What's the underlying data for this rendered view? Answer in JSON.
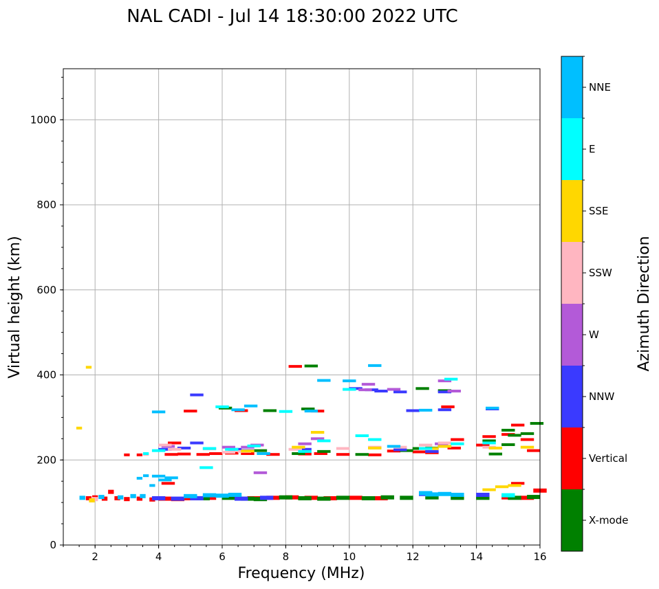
{
  "chart_data": {
    "type": "scatter",
    "title": "NAL CADI - Jul 14 18:30:00 2022 UTC",
    "xlabel": "Frequency (MHz)",
    "ylabel": "Virtual height (km)",
    "xlim": [
      1,
      16
    ],
    "ylim": [
      0,
      1120
    ],
    "xticks": [
      "2",
      "4",
      "6",
      "8",
      "10",
      "12",
      "14",
      "16"
    ],
    "yticks": [
      "0",
      "200",
      "400",
      "600",
      "800",
      "1000"
    ],
    "grid": true,
    "colorbar": {
      "label": "Azimuth Direction",
      "entries": [
        {
          "name": "X-mode",
          "color": "#008000"
        },
        {
          "name": "Vertical",
          "color": "#ff0000"
        },
        {
          "name": "NNW",
          "color": "#3a3aff"
        },
        {
          "name": "W",
          "color": "#b35ad8"
        },
        {
          "name": "SSW",
          "color": "#ffb6c1"
        },
        {
          "name": "SSE",
          "color": "#ffd700"
        },
        {
          "name": "E",
          "color": "#00ffff"
        },
        {
          "name": "NNE",
          "color": "#00bfff"
        }
      ]
    },
    "series": [
      {
        "name": "Vertical",
        "points": [
          [
            1.8,
            110
          ],
          [
            2.0,
            112
          ],
          [
            2.3,
            109
          ],
          [
            2.7,
            110
          ],
          [
            3.0,
            108
          ],
          [
            3.4,
            109
          ],
          [
            3.8,
            107
          ],
          [
            4.2,
            109
          ],
          [
            4.6,
            108
          ],
          [
            5.0,
            110
          ],
          [
            5.6,
            111
          ],
          [
            6.4,
            112
          ],
          [
            7.0,
            110
          ],
          [
            7.6,
            111
          ],
          [
            8.2,
            112
          ],
          [
            8.8,
            111
          ],
          [
            9.4,
            110
          ],
          [
            10.2,
            111
          ],
          [
            11.0,
            110
          ],
          [
            15.0,
            112
          ],
          [
            15.6,
            111
          ],
          [
            16.0,
            128
          ],
          [
            3.0,
            212
          ],
          [
            3.4,
            212
          ],
          [
            4.4,
            213
          ],
          [
            4.8,
            214
          ],
          [
            5.4,
            213
          ],
          [
            5.8,
            215
          ],
          [
            6.3,
            216
          ],
          [
            6.8,
            215
          ],
          [
            7.6,
            213
          ],
          [
            8.6,
            214
          ],
          [
            9.1,
            215
          ],
          [
            9.8,
            213
          ],
          [
            10.8,
            212
          ],
          [
            11.4,
            221
          ],
          [
            12.2,
            219
          ],
          [
            12.6,
            217
          ],
          [
            13.3,
            228
          ],
          [
            13.4,
            248
          ],
          [
            14.2,
            235
          ],
          [
            14.4,
            255
          ],
          [
            15.0,
            260
          ],
          [
            15.3,
            282
          ],
          [
            15.6,
            248
          ],
          [
            15.8,
            222
          ],
          [
            4.5,
            240
          ],
          [
            5.0,
            315
          ],
          [
            6.6,
            316
          ],
          [
            8.3,
            420
          ],
          [
            9.0,
            315
          ],
          [
            13.1,
            325
          ],
          [
            15.3,
            145
          ],
          [
            4.3,
            145
          ],
          [
            2.5,
            125
          ]
        ]
      },
      {
        "name": "X-mode",
        "points": [
          [
            5.4,
            110
          ],
          [
            6.2,
            111
          ],
          [
            6.8,
            109
          ],
          [
            7.2,
            108
          ],
          [
            8.0,
            112
          ],
          [
            8.6,
            110
          ],
          [
            9.2,
            109
          ],
          [
            9.8,
            111
          ],
          [
            10.6,
            110
          ],
          [
            11.2,
            112
          ],
          [
            11.8,
            111
          ],
          [
            12.6,
            112
          ],
          [
            13.4,
            111
          ],
          [
            14.2,
            111
          ],
          [
            15.2,
            111
          ],
          [
            15.8,
            113
          ],
          [
            7.2,
            222
          ],
          [
            8.4,
            215
          ],
          [
            9.2,
            220
          ],
          [
            10.4,
            213
          ],
          [
            11.8,
            222
          ],
          [
            12.2,
            227
          ],
          [
            12.6,
            228
          ],
          [
            13.0,
            232
          ],
          [
            14.6,
            214
          ],
          [
            15.0,
            236
          ],
          [
            15.2,
            258
          ],
          [
            15.6,
            262
          ],
          [
            15.9,
            286
          ],
          [
            14.4,
            245
          ],
          [
            15.0,
            270
          ],
          [
            6.1,
            322
          ],
          [
            7.5,
            316
          ],
          [
            8.7,
            320
          ],
          [
            8.8,
            421
          ],
          [
            12.3,
            368
          ],
          [
            13.0,
            363
          ]
        ]
      },
      {
        "name": "NNW",
        "points": [
          [
            4.0,
            110
          ],
          [
            4.6,
            109
          ],
          [
            5.2,
            110
          ],
          [
            6.6,
            109
          ],
          [
            7.4,
            111
          ],
          [
            4.2,
            225
          ],
          [
            4.8,
            228
          ],
          [
            6.4,
            225
          ],
          [
            6.8,
            222
          ],
          [
            8.6,
            225
          ],
          [
            11.6,
            224
          ],
          [
            12.6,
            220
          ],
          [
            14.2,
            118
          ],
          [
            12.0,
            316
          ],
          [
            13.0,
            318
          ],
          [
            5.2,
            353
          ],
          [
            5.2,
            240
          ],
          [
            10.2,
            368
          ],
          [
            10.7,
            365
          ],
          [
            11.0,
            362
          ],
          [
            11.6,
            360
          ],
          [
            12.4,
            120
          ],
          [
            13.0,
            360
          ],
          [
            14.5,
            320
          ]
        ]
      },
      {
        "name": "W",
        "points": [
          [
            6.2,
            230
          ],
          [
            7.1,
            235
          ],
          [
            8.6,
            238
          ],
          [
            10.5,
            365
          ],
          [
            10.6,
            378
          ],
          [
            11.4,
            366
          ],
          [
            12.9,
            238
          ],
          [
            13.0,
            386
          ],
          [
            13.3,
            362
          ],
          [
            9.0,
            250
          ],
          [
            7.2,
            170
          ],
          [
            4.3,
            232
          ],
          [
            6.8,
            230
          ]
        ]
      },
      {
        "name": "SSW",
        "points": [
          [
            4.5,
            225
          ],
          [
            5.6,
            226
          ],
          [
            6.2,
            218
          ],
          [
            6.7,
            220
          ],
          [
            8.3,
            225
          ],
          [
            9.8,
            227
          ],
          [
            10.8,
            230
          ],
          [
            11.6,
            230
          ],
          [
            12.4,
            235
          ],
          [
            13.0,
            240
          ],
          [
            14.4,
            230
          ],
          [
            4.2,
            235
          ],
          [
            3.6,
            213
          ],
          [
            2.0,
            108
          ]
        ]
      },
      {
        "name": "SSE",
        "points": [
          [
            6.8,
            221
          ],
          [
            8.4,
            230
          ],
          [
            9.0,
            265
          ],
          [
            10.8,
            228
          ],
          [
            12.6,
            227
          ],
          [
            13.0,
            232
          ],
          [
            14.4,
            130
          ],
          [
            14.8,
            137
          ],
          [
            14.6,
            228
          ],
          [
            15.2,
            140
          ],
          [
            1.8,
            418
          ],
          [
            1.5,
            275
          ],
          [
            1.9,
            105
          ],
          [
            15.6,
            230
          ]
        ]
      },
      {
        "name": "E",
        "points": [
          [
            3.6,
            215
          ],
          [
            4.0,
            222
          ],
          [
            5.6,
            227
          ],
          [
            6.3,
            225
          ],
          [
            7.0,
            233
          ],
          [
            8.6,
            220
          ],
          [
            9.2,
            245
          ],
          [
            10.4,
            257
          ],
          [
            10.8,
            248
          ],
          [
            12.4,
            227
          ],
          [
            13.4,
            238
          ],
          [
            14.4,
            240
          ],
          [
            15.0,
            117
          ],
          [
            5.5,
            182
          ],
          [
            6.0,
            325
          ],
          [
            8.0,
            314
          ],
          [
            10.0,
            366
          ],
          [
            13.2,
            390
          ]
        ]
      },
      {
        "name": "NNE",
        "points": [
          [
            1.6,
            111
          ],
          [
            2.2,
            113
          ],
          [
            2.8,
            112
          ],
          [
            3.2,
            115
          ],
          [
            3.5,
            115
          ],
          [
            4.0,
            162
          ],
          [
            4.2,
            153
          ],
          [
            3.4,
            157
          ],
          [
            3.6,
            163
          ],
          [
            4.4,
            158
          ],
          [
            5.0,
            115
          ],
          [
            5.6,
            117
          ],
          [
            6.0,
            116
          ],
          [
            6.4,
            118
          ],
          [
            4.0,
            313
          ],
          [
            6.5,
            318
          ],
          [
            6.9,
            327
          ],
          [
            8.8,
            315
          ],
          [
            9.2,
            387
          ],
          [
            10.0,
            386
          ],
          [
            10.8,
            422
          ],
          [
            11.4,
            232
          ],
          [
            12.4,
            122
          ],
          [
            12.6,
            119
          ],
          [
            12.4,
            317
          ],
          [
            13.0,
            120
          ],
          [
            13.4,
            118
          ],
          [
            14.5,
            322
          ],
          [
            7.3,
            215
          ],
          [
            3.8,
            140
          ]
        ]
      }
    ]
  }
}
